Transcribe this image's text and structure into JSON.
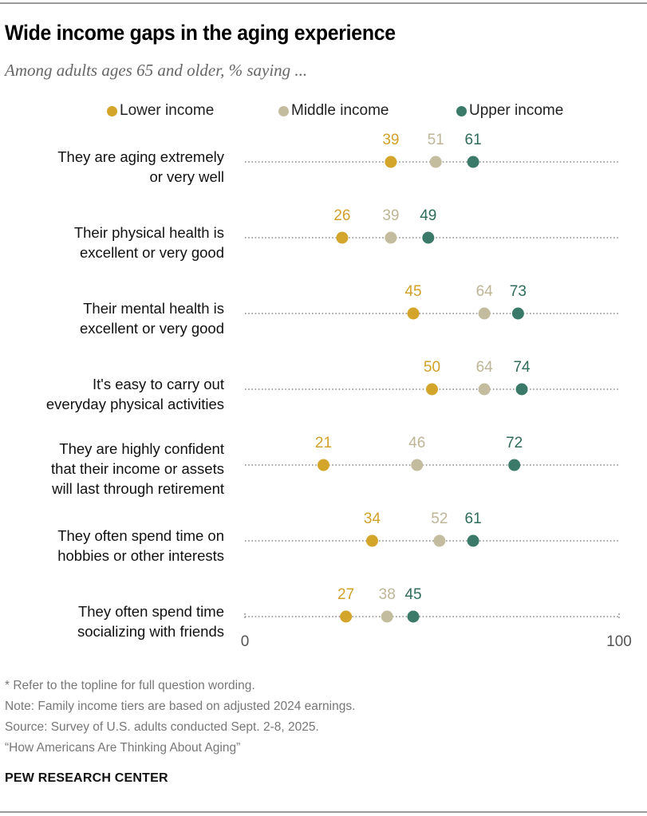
{
  "title": "Wide income gaps in the aging experience",
  "subtitle": "Among adults ages 65 and older, % saying ...",
  "colors": {
    "lower": "#D4A52B",
    "middle": "#C4BC9F",
    "upper": "#3B7A68",
    "lower_text": "#D1A12A",
    "middle_text": "#BDB596",
    "upper_text": "#2F6B5B"
  },
  "chart_data": {
    "type": "dot",
    "legend_position": "top",
    "xlim": [
      0,
      100
    ],
    "x_ticks": [
      "0",
      "100"
    ],
    "series": [
      {
        "name": "Lower income"
      },
      {
        "name": "Middle income"
      },
      {
        "name": "Upper income"
      }
    ],
    "categories": [
      [
        "They are aging extremely",
        "or very well"
      ],
      [
        "Their physical health is",
        "excellent or very good"
      ],
      [
        "Their mental health is",
        "excellent or very good"
      ],
      [
        "It's easy to carry out",
        "everyday physical activities"
      ],
      [
        "They are highly confident",
        "that their income or assets",
        "will last through retirement"
      ],
      [
        "They often spend time on",
        "hobbies or other interests"
      ],
      [
        "They often spend time",
        "socializing with friends"
      ]
    ],
    "values": [
      [
        39,
        51,
        61
      ],
      [
        26,
        39,
        49
      ],
      [
        45,
        64,
        73
      ],
      [
        50,
        64,
        74
      ],
      [
        21,
        46,
        72
      ],
      [
        34,
        52,
        61
      ],
      [
        27,
        38,
        45
      ]
    ]
  },
  "footer": {
    "note1": "* Refer to the topline for full question wording.",
    "note2": "Note: Family income tiers are based on adjusted 2024 earnings.",
    "source": "Source: Survey of U.S. adults conducted Sept. 2-8, 2025.",
    "report": "“How Americans Are Thinking About Aging”",
    "brand": "PEW RESEARCH CENTER"
  }
}
